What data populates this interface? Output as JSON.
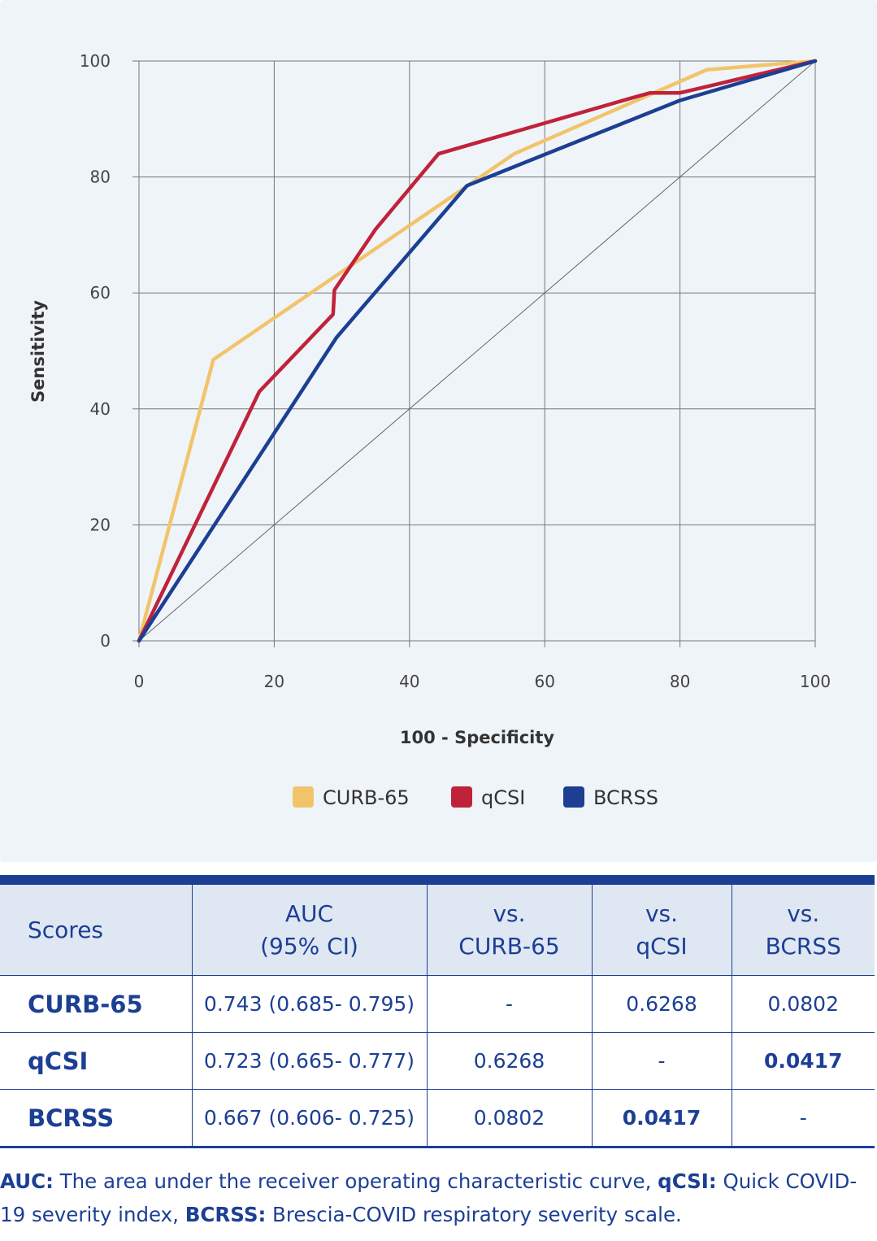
{
  "chart_data": {
    "type": "line",
    "xlabel": "100 - Specificity",
    "ylabel": "Sensitivity",
    "xlim": [
      0,
      100
    ],
    "ylim": [
      0,
      100
    ],
    "x_ticks": [
      "0",
      "20",
      "40",
      "60",
      "80",
      "100"
    ],
    "y_ticks": [
      "0",
      "20",
      "40",
      "60",
      "80",
      "100"
    ],
    "grid": true,
    "reference_line": {
      "x": [
        0,
        100
      ],
      "y": [
        0,
        100
      ]
    },
    "legend_position": "bottom",
    "series": [
      {
        "name": "CURB-65",
        "color": "#f2c46a",
        "x": [
          0,
          11,
          55.5,
          84,
          100
        ],
        "y": [
          0,
          48.5,
          84,
          98.5,
          100
        ]
      },
      {
        "name": "qCSI",
        "color": "#c0223a",
        "x": [
          0,
          17.8,
          28.7,
          28.9,
          35,
          44.3,
          72.5,
          75.6,
          80,
          100
        ],
        "y": [
          0,
          43,
          56.3,
          60.5,
          71,
          84,
          93.5,
          94.5,
          94.5,
          100
        ]
      },
      {
        "name": "BCRSS",
        "color": "#1c3f94",
        "x": [
          0,
          29.2,
          48.5,
          80,
          100
        ],
        "y": [
          0,
          52.3,
          78.5,
          93.2,
          100
        ]
      }
    ]
  },
  "table": {
    "headers": [
      {
        "line1": "Scores",
        "line2": ""
      },
      {
        "line1": "AUC",
        "line2": "(95% CI)"
      },
      {
        "line1": "vs.",
        "line2": "CURB-65"
      },
      {
        "line1": "vs.",
        "line2": "qCSI"
      },
      {
        "line1": "vs.",
        "line2": "BCRSS"
      }
    ],
    "rows": [
      {
        "score": "CURB-65",
        "auc": "0.743 (0.685- 0.795)",
        "vs_curb": "-",
        "vs_qcsi": "0.6268",
        "vs_bcrss": "0.0802"
      },
      {
        "score": "qCSI",
        "auc": "0.723 (0.665- 0.777)",
        "vs_curb": "0.6268",
        "vs_qcsi": "-",
        "vs_bcrss": "0.0417"
      },
      {
        "score": "BCRSS",
        "auc": "0.667 (0.606- 0.725)",
        "vs_curb": "0.0802",
        "vs_qcsi": "0.0417",
        "vs_bcrss": "-"
      }
    ]
  },
  "footnote": {
    "auc_term": "AUC:",
    "auc_def": " The area under the receiver operating characteristic curve, ",
    "qcsi_term": "qCSI:",
    "qcsi_def": " Quick COVID-19 severity index, ",
    "bcrss_term": "BCRSS:",
    "bcrss_def": " Brescia-COVID respiratory severity scale."
  }
}
